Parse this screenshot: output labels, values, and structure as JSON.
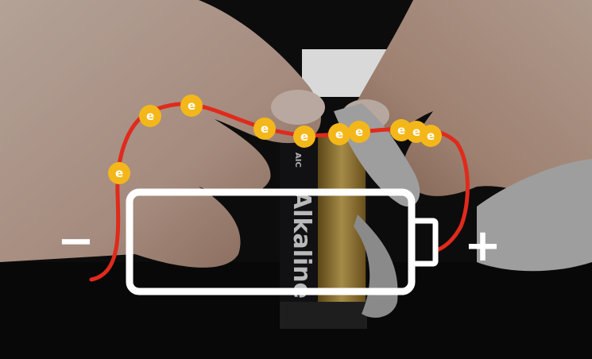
{
  "scene": {
    "negative_label": "−",
    "positive_label": "+",
    "electron_label": "e",
    "battery_brand": "Alkaline",
    "battery_logo": "AIC",
    "colors": {
      "wire": "#e02a1c",
      "electron": "#f4b71a",
      "outline": "#ffffff",
      "skin_light": "#e7d0c1",
      "skin_dark": "#b99382",
      "background": "#0c0c0c"
    }
  }
}
